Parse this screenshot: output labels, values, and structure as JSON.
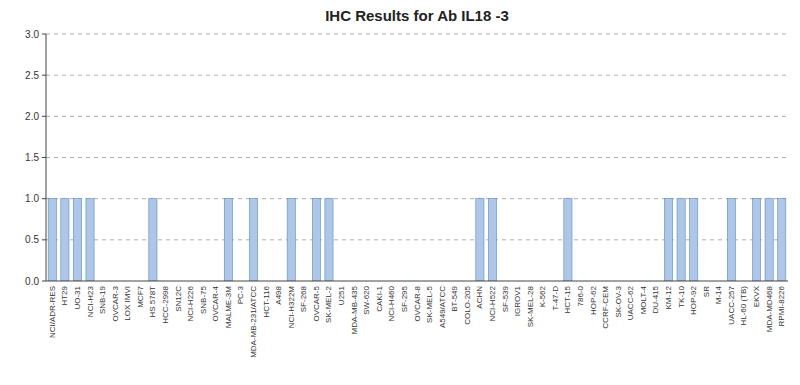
{
  "chart_data": {
    "type": "bar",
    "title": "IHC Results for Ab IL18 -3",
    "categories": [
      "NCI/ADR-RES",
      "HT29",
      "UO-31",
      "NCI-H23",
      "SNB-19",
      "OVCAR-3",
      "LOX IMVI",
      "MCF7",
      "HS 578T",
      "HCC-2998",
      "SN12C",
      "NCI-H226",
      "SNB-75",
      "OVCAR-4",
      "MALME-3M",
      "PC-3",
      "MDA-MB-231/ATCC",
      "HCT-116",
      "A498",
      "NCI-H322M",
      "SF-268",
      "OVCAR-5",
      "SK-MEL-2",
      "U251",
      "MDA-MB-435",
      "SW-620",
      "CAKI-1",
      "NCI-H460",
      "SF-295",
      "OVCAR-8",
      "SK-MEL-5",
      "A549/ATCC",
      "BT-549",
      "COLO-205",
      "ACHN",
      "NCI-H522",
      "SF-539",
      "IGROV1",
      "SK-MEL-28",
      "K-562",
      "T-47-D",
      "HCT-15",
      "786-0",
      "HOP-62",
      "CCRF-CEM",
      "SK-OV-3",
      "UACC-62",
      "MOLT-4",
      "DU-415",
      "KM-12",
      "TK-10",
      "HOP-92",
      "SR",
      "M-14",
      "UACC-257",
      "HL-60 (TB)",
      "EKVX",
      "MDA-MD468",
      "RPMI-8226"
    ],
    "values": [
      1,
      1,
      1,
      1,
      0,
      0,
      0,
      0,
      1,
      0,
      0,
      0,
      0,
      0,
      1,
      0,
      1,
      0,
      0,
      1,
      0,
      1,
      1,
      0,
      0,
      0,
      0,
      0,
      0,
      0,
      0,
      0,
      0,
      0,
      1,
      1,
      0,
      0,
      0,
      0,
      0,
      1,
      0,
      0,
      0,
      0,
      0,
      0,
      0,
      1,
      1,
      1,
      0,
      0,
      1,
      0,
      1,
      1,
      1
    ],
    "color": "#aec6e8",
    "ylim": [
      0,
      3.0
    ],
    "yticks": [
      {
        "value": 0,
        "label": "0.0"
      },
      0.5,
      {
        "value": 1,
        "label": "1.0"
      },
      1.5,
      {
        "value": 2,
        "label": "2.0"
      },
      2.5,
      {
        "value": 3,
        "label": "3.0"
      }
    ],
    "grid": true
  }
}
